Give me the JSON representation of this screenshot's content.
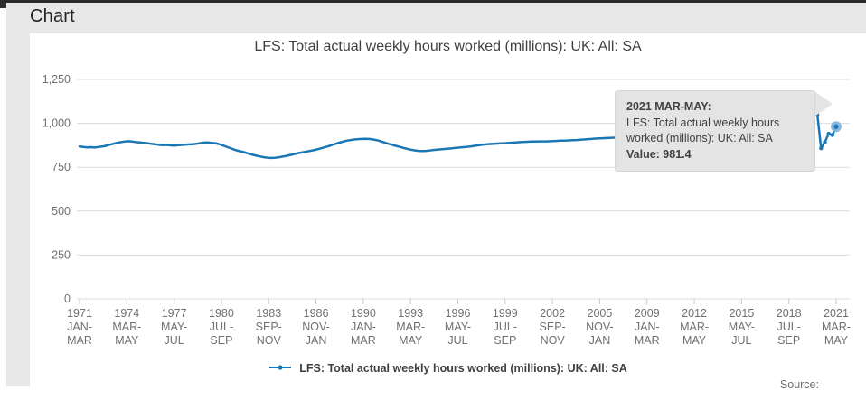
{
  "page": {
    "section_heading": "Chart",
    "source_label": "Source:"
  },
  "chart": {
    "title": "LFS: Total actual weekly hours worked (millions): UK: All: SA",
    "legend_label": "LFS: Total actual weekly hours worked (millions): UK: All: SA",
    "tooltip": {
      "period": "2021 MAR-MAY:",
      "series": "LFS: Total actual weekly hours worked (millions): UK: All: SA",
      "value_line": "Value: 981.4"
    },
    "colors": {
      "line": "#1a77b5",
      "highlight": "#7ab3de",
      "grid": "#dcdcdc",
      "axis": "#c9c9c9",
      "axis_text": "#707070",
      "tooltip_bg": "#e4e4e4"
    }
  },
  "chart_data": {
    "type": "line",
    "title": "LFS: Total actual weekly hours worked (millions): UK: All: SA",
    "series_name": "LFS: Total actual weekly hours worked (millions): UK: All: SA",
    "xlabel": "",
    "ylabel": "",
    "ylim": [
      0,
      1250
    ],
    "grid": "horizontal",
    "legend_position": "bottom",
    "y_ticks": [
      {
        "value": 0,
        "label": "0"
      },
      {
        "value": 250,
        "label": "250"
      },
      {
        "value": 500,
        "label": "500"
      },
      {
        "value": 750,
        "label": "750"
      },
      {
        "value": 1000,
        "label": "1,000"
      },
      {
        "value": 1250,
        "label": "1,250"
      }
    ],
    "x_tick_labels": [
      [
        "1971",
        "JAN-",
        "MAR"
      ],
      [
        "1974",
        "MAR-",
        "MAY"
      ],
      [
        "1977",
        "MAY-",
        "JUL"
      ],
      [
        "1980",
        "JUL-",
        "SEP"
      ],
      [
        "1983",
        "SEP-",
        "NOV"
      ],
      [
        "1986",
        "NOV-",
        "JAN"
      ],
      [
        "1990",
        "JAN-",
        "MAR"
      ],
      [
        "1993",
        "MAR-",
        "MAY"
      ],
      [
        "1996",
        "MAY-",
        "JUL"
      ],
      [
        "1999",
        "JUL-",
        "SEP"
      ],
      [
        "2002",
        "SEP-",
        "NOV"
      ],
      [
        "2005",
        "NOV-",
        "JAN"
      ],
      [
        "2009",
        "JAN-",
        "MAR"
      ],
      [
        "2012",
        "MAR-",
        "MAY"
      ],
      [
        "2015",
        "MAY-",
        "JUL"
      ],
      [
        "2018",
        "JUL-",
        "SEP"
      ],
      [
        "2021",
        "MAR-",
        "MAY"
      ]
    ],
    "x_range_note": "quarterly periods from 1971 JAN-MAR to 2021 MAR-MAY",
    "highlighted_point": {
      "label": "2021 MAR-MAY",
      "value": 981.4
    },
    "values": [
      868,
      865,
      863,
      864,
      862,
      865,
      868,
      872,
      878,
      884,
      889,
      893,
      896,
      898,
      896,
      893,
      891,
      889,
      887,
      884,
      881,
      878,
      876,
      877,
      875,
      873,
      875,
      877,
      878,
      880,
      881,
      884,
      887,
      890,
      891,
      889,
      887,
      882,
      875,
      867,
      859,
      851,
      844,
      839,
      834,
      827,
      821,
      816,
      811,
      807,
      804,
      803,
      804,
      807,
      811,
      815,
      820,
      825,
      830,
      834,
      838,
      842,
      846,
      851,
      857,
      863,
      869,
      876,
      883,
      890,
      896,
      901,
      905,
      908,
      910,
      911,
      912,
      911,
      908,
      904,
      898,
      891,
      884,
      878,
      872,
      866,
      860,
      855,
      850,
      846,
      843,
      842,
      843,
      845,
      848,
      850,
      852,
      854,
      856,
      858,
      860,
      862,
      864,
      866,
      869,
      872,
      875,
      878,
      880,
      882,
      884,
      885,
      886,
      887,
      889,
      890,
      891,
      893,
      894,
      895,
      896,
      896,
      897,
      897,
      897,
      898,
      899,
      900,
      901,
      902,
      903,
      904,
      905,
      907,
      908,
      910,
      911,
      913,
      914,
      915,
      916,
      917,
      918,
      920,
      922,
      924,
      926,
      928,
      930,
      930,
      927,
      921,
      913,
      907,
      903,
      902,
      904,
      907,
      910,
      913,
      915,
      917,
      919,
      921,
      924,
      928,
      932,
      936,
      940,
      945,
      950,
      955,
      960,
      966,
      972,
      978,
      983,
      987,
      991,
      994,
      997,
      1000,
      1003,
      1006,
      1009,
      1013,
      1017,
      1021,
      1025,
      1029,
      1033,
      1037,
      1041,
      1045,
      1049,
      1053,
      1051,
      858,
      893,
      941,
      933,
      981.4
    ]
  }
}
